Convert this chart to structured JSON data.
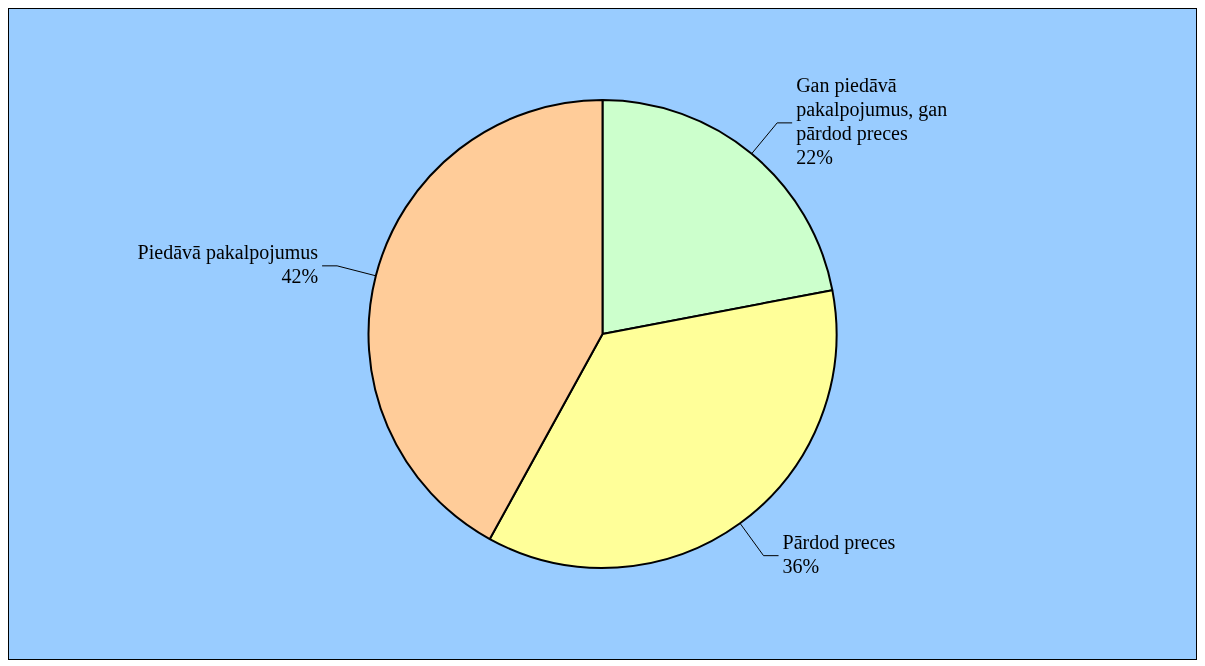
{
  "chart_data": {
    "type": "pie",
    "categories": [
      "Gan piedāvā pakalpojumus, gan pārdod preces",
      "Pārdod preces",
      "Piedāvā pakalpojumus"
    ],
    "values": [
      22,
      36,
      42
    ],
    "value_labels": [
      "22%",
      "36%",
      "42%"
    ],
    "colors": [
      "#ccffcc",
      "#ffff99",
      "#ffcc99"
    ],
    "legend": false
  }
}
